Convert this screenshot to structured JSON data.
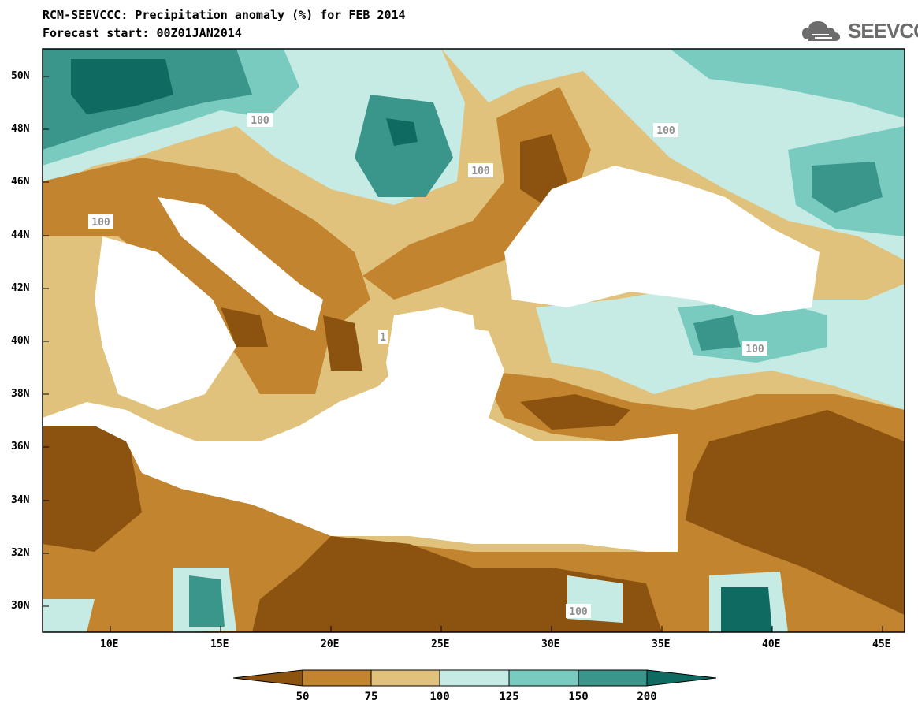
{
  "title_line1": "RCM-SEEVCCC: Precipitation anomaly (%) for FEB 2014",
  "title_line2": "Forecast start: 00Z01JAN2014",
  "logo_text": "SEEVCCC",
  "colors": {
    "lt50": "#8c5310",
    "50_75": "#c2842e",
    "75_100": "#e0c27c",
    "100_125": "#c6ebe5",
    "125_150": "#79cbbf",
    "150_200": "#3a958b",
    "gt200": "#0f6b62",
    "contour": "#a0a0a0",
    "land_sea": "#ffffff"
  },
  "latitude_labels": [
    "50N",
    "48N",
    "46N",
    "44N",
    "42N",
    "40N",
    "38N",
    "36N",
    "34N",
    "32N",
    "30N"
  ],
  "longitude_labels": [
    "10E",
    "15E",
    "20E",
    "25E",
    "30E",
    "35E",
    "40E",
    "45E"
  ],
  "contour_labels": [
    "100",
    "100",
    "100",
    "100",
    "100",
    "100",
    "1"
  ],
  "colorbar": {
    "ticks": [
      "50",
      "75",
      "100",
      "125",
      "150",
      "200"
    ]
  }
}
